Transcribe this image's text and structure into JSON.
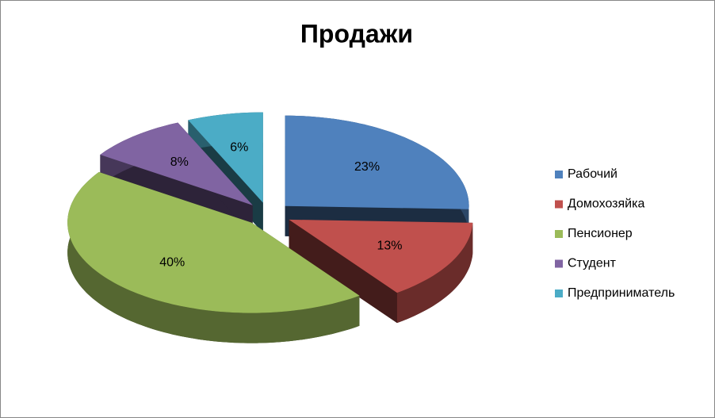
{
  "chart_data": {
    "type": "pie",
    "title": "Продажи",
    "categories": [
      "Рабочий",
      "Домохозяйка",
      "Пенсионер",
      "Студент",
      "Предприниматель"
    ],
    "values": [
      23,
      13,
      40,
      8,
      6
    ],
    "value_labels": [
      "23%",
      "13%",
      "40%",
      "8%",
      "6%"
    ],
    "colors": [
      "#4f81bd",
      "#c0504d",
      "#9bbb59",
      "#8064a2",
      "#4bacc6"
    ],
    "legend": "right"
  }
}
